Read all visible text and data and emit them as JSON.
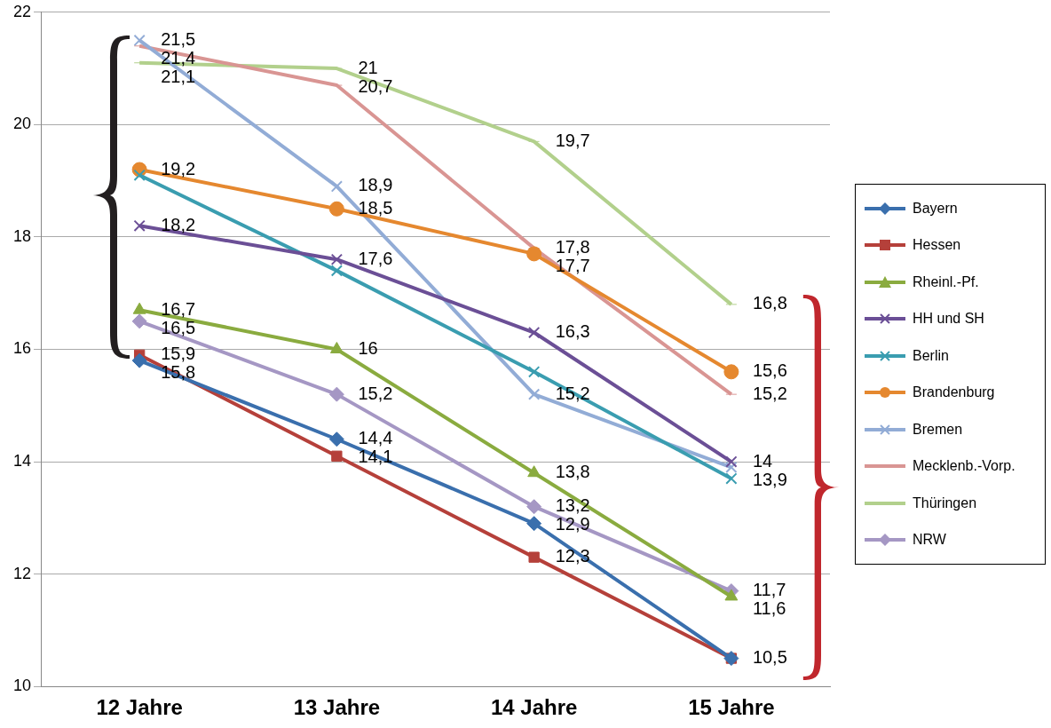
{
  "chart_data": {
    "type": "line",
    "categories": [
      "12 Jahre",
      "13 Jahre",
      "14 Jahre",
      "15 Jahre"
    ],
    "ylim": [
      10,
      22
    ],
    "yticks": [
      10,
      12,
      14,
      16,
      18,
      20,
      22
    ],
    "grid": "y",
    "legend": "right",
    "series": [
      {
        "name": "Bayern",
        "color": "#3a6fad",
        "marker": "diamond",
        "values": [
          15.8,
          14.4,
          12.9,
          10.5
        ],
        "value_labels": [
          "15,8",
          "14,4",
          "12,9",
          null
        ]
      },
      {
        "name": "Hessen",
        "color": "#b5403a",
        "marker": "square",
        "values": [
          15.9,
          14.1,
          12.3,
          10.5
        ],
        "value_labels": [
          "15,9",
          "14,1",
          "12,3",
          "10,5"
        ]
      },
      {
        "name": "Rheinl.-Pf.",
        "color": "#8aab3f",
        "marker": "triangle",
        "values": [
          16.7,
          16,
          13.8,
          11.6
        ],
        "value_labels": [
          "16,7",
          "16",
          "13,8",
          "11,6"
        ]
      },
      {
        "name": "HH und SH",
        "color": "#6b4f96",
        "marker": "cross",
        "values": [
          18.2,
          17.6,
          16.3,
          14
        ],
        "value_labels": [
          "18,2",
          "17,6",
          "16,3",
          "14"
        ]
      },
      {
        "name": "Berlin",
        "color": "#3a9db0",
        "marker": "cross",
        "values": [
          19.1,
          17.4,
          15.6,
          13.7
        ],
        "value_labels": [
          null,
          null,
          null,
          null
        ]
      },
      {
        "name": "Brandenburg",
        "color": "#e5882f",
        "marker": "circle",
        "values": [
          19.2,
          18.5,
          17.7,
          15.6
        ],
        "value_labels": [
          "19,2",
          "18,5",
          "17,7",
          "15,6"
        ]
      },
      {
        "name": "Bremen",
        "color": "#92acd6",
        "marker": "cross",
        "values": [
          21.5,
          18.9,
          15.2,
          13.9
        ],
        "value_labels": [
          "21,5",
          "18,9",
          "15,2",
          "13,9"
        ]
      },
      {
        "name": "Mecklenb.-Vorp.",
        "color": "#d99593",
        "marker": "none",
        "values": [
          21.4,
          20.7,
          17.8,
          15.2
        ],
        "value_labels": [
          "21,4",
          "20,7",
          "17,8",
          "15,2"
        ]
      },
      {
        "name": "Thüringen",
        "color": "#b2d08c",
        "marker": "none",
        "values": [
          21.1,
          21,
          19.7,
          16.8
        ],
        "value_labels": [
          "21,1",
          "21",
          "19,7",
          "16,8"
        ]
      },
      {
        "name": "NRW",
        "color": "#a597c4",
        "marker": "diamond",
        "values": [
          16.5,
          15.2,
          13.2,
          11.7
        ],
        "value_labels": [
          "16,5",
          "15,2",
          "13,2",
          "11,7"
        ]
      }
    ]
  }
}
